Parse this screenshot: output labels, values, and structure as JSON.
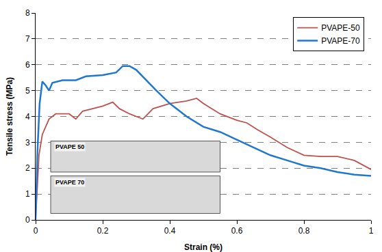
{
  "chart_data": {
    "type": "line",
    "x_label": "Strain (%)",
    "y_label": "Tensile stress (MPa)",
    "xlim": [
      0,
      1
    ],
    "xticks": [
      0,
      0.2,
      0.4,
      0.6,
      0.8,
      1
    ],
    "ylim": [
      0,
      8
    ],
    "yticks": [
      0,
      1,
      2,
      3,
      4,
      5,
      6,
      7,
      8
    ],
    "grid": true,
    "legend": "top right",
    "annotations": [
      "PVAPE 50",
      "PVAPE 70"
    ],
    "series": [
      {
        "name": "PVAPE-50",
        "color": "#c0504d",
        "line_style": "solid",
        "x": [
          0,
          0.01,
          0.02,
          0.04,
          0.06,
          0.1,
          0.12,
          0.14,
          0.2,
          0.23,
          0.25,
          0.28,
          0.3,
          0.32,
          0.35,
          0.4,
          0.45,
          0.48,
          0.5,
          0.55,
          0.6,
          0.63,
          0.66,
          0.7,
          0.75,
          0.8,
          0.85,
          0.9,
          0.95,
          1.0
        ],
        "values": [
          0,
          2.5,
          3.3,
          3.9,
          4.1,
          4.1,
          3.9,
          4.2,
          4.4,
          4.55,
          4.3,
          4.1,
          4.0,
          3.9,
          4.3,
          4.5,
          4.6,
          4.7,
          4.5,
          4.1,
          3.85,
          3.75,
          3.5,
          3.2,
          2.8,
          2.5,
          2.45,
          2.45,
          2.3,
          1.95
        ]
      },
      {
        "name": "PVAPE-70",
        "color": "#1f77d0",
        "line_style": "solid",
        "x": [
          0,
          0.005,
          0.012,
          0.02,
          0.03,
          0.04,
          0.05,
          0.08,
          0.12,
          0.15,
          0.2,
          0.24,
          0.26,
          0.28,
          0.3,
          0.33,
          0.36,
          0.4,
          0.45,
          0.5,
          0.55,
          0.6,
          0.65,
          0.7,
          0.75,
          0.8,
          0.85,
          0.9,
          0.95,
          1.0
        ],
        "values": [
          0,
          2.5,
          4.5,
          5.35,
          5.2,
          5.0,
          5.3,
          5.4,
          5.4,
          5.55,
          5.6,
          5.7,
          5.95,
          5.95,
          5.8,
          5.4,
          5.0,
          4.5,
          4.0,
          3.6,
          3.4,
          3.1,
          2.8,
          2.5,
          2.3,
          2.1,
          2.0,
          1.85,
          1.75,
          1.7
        ]
      }
    ]
  }
}
